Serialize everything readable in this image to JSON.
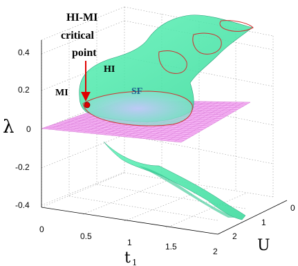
{
  "chart_data": {
    "type": "surface3d",
    "title": "",
    "xlabel": "t",
    "xlabel_sub": "1",
    "ylabel": "U",
    "zlabel": "λ",
    "x_ticks": [
      "0",
      "0.5",
      "1",
      "1.5",
      "2"
    ],
    "y_ticks": [
      "0",
      "1",
      "2"
    ],
    "z_ticks": [
      "0.4",
      "0.2",
      "0",
      "-0.2",
      "-0.4"
    ],
    "xlim": [
      0,
      2
    ],
    "ylim": [
      0,
      2.5
    ],
    "zlim": [
      -0.45,
      0.45
    ],
    "grid": true,
    "plane": {
      "z": 0,
      "color": "#f29af0"
    },
    "surface_color": "#3ff0a6",
    "region_labels": {
      "mi": "MI",
      "hi": "HI",
      "sf": "SF"
    },
    "annotation": {
      "lines": [
        "HI-MI",
        "critical",
        "point"
      ]
    },
    "critical_point": {
      "t1": 0.5,
      "U": 1.0,
      "lambda": 0.1
    },
    "colors": {
      "arrow": "#e00000",
      "boundary": "#d03030"
    }
  }
}
